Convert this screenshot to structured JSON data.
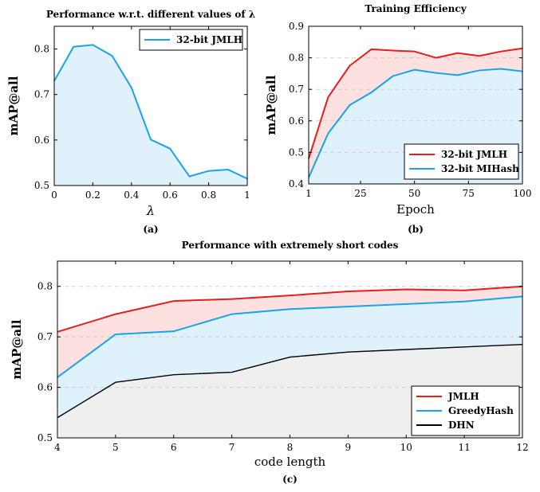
{
  "chart_data": [
    {
      "id": "a",
      "type": "area",
      "title": "Performance w.r.t. different values of λ",
      "xlabel": "λ",
      "ylabel": "mAP@all",
      "caption": "(a)",
      "xlim": [
        0,
        1
      ],
      "ylim": [
        0.5,
        0.85
      ],
      "xticks": [
        "0",
        "0.2",
        "0.4",
        "0.6",
        "0.8",
        "1"
      ],
      "yticks": [
        "0.5",
        "0.6",
        "0.7",
        "0.8"
      ],
      "grid": false,
      "legend_position": "top-right",
      "x": [
        0,
        0.1,
        0.2,
        0.3,
        0.4,
        0.5,
        0.6,
        0.7,
        0.8,
        0.9,
        1.0
      ],
      "series": [
        {
          "name": "32-bit JMLH",
          "color": "#1aa3e8",
          "fill": "#dff1fb",
          "values": [
            0.73,
            0.805,
            0.809,
            0.785,
            0.715,
            0.601,
            0.581,
            0.52,
            0.532,
            0.535,
            0.515
          ]
        }
      ]
    },
    {
      "id": "b",
      "type": "area",
      "title": "Training Efficiency",
      "xlabel": "Epoch",
      "ylabel": "mAP@all",
      "caption": "(b)",
      "xlim": [
        1,
        100
      ],
      "ylim": [
        0.4,
        0.9
      ],
      "xticks": [
        "1",
        "25",
        "50",
        "75",
        "100"
      ],
      "yticks": [
        "0.4",
        "0.5",
        "0.6",
        "0.7",
        "0.8",
        "0.9"
      ],
      "grid": true,
      "legend_position": "bottom-right",
      "x": [
        1,
        10,
        20,
        30,
        40,
        50,
        60,
        70,
        80,
        90,
        100
      ],
      "series": [
        {
          "name": "32-bit JMLH",
          "color": "#e61e1e",
          "fill": "#fde0e0",
          "values": [
            0.48,
            0.675,
            0.775,
            0.827,
            0.823,
            0.82,
            0.8,
            0.815,
            0.806,
            0.82,
            0.83
          ]
        },
        {
          "name": "32-bit MIHash",
          "color": "#1aa3e8",
          "fill": "#dff1fb",
          "values": [
            0.42,
            0.56,
            0.65,
            0.69,
            0.742,
            0.762,
            0.752,
            0.745,
            0.76,
            0.765,
            0.757
          ]
        }
      ]
    },
    {
      "id": "c",
      "type": "area",
      "title": "Performance with extremely short codes",
      "xlabel": "code length",
      "ylabel": "mAP@all",
      "caption": "(c)",
      "xlim": [
        4,
        12
      ],
      "ylim": [
        0.5,
        0.85
      ],
      "xticks": [
        "4",
        "5",
        "6",
        "7",
        "8",
        "9",
        "10",
        "11",
        "12"
      ],
      "yticks": [
        "0.5",
        "0.6",
        "0.7",
        "0.8"
      ],
      "grid": true,
      "legend_position": "bottom-right",
      "x": [
        4,
        5,
        6,
        7,
        8,
        9,
        10,
        11,
        12
      ],
      "series": [
        {
          "name": "JMLH",
          "color": "#e61e1e",
          "fill": "#fde0e0",
          "values": [
            0.71,
            0.745,
            0.771,
            0.775,
            0.782,
            0.79,
            0.794,
            0.792,
            0.8
          ]
        },
        {
          "name": "GreedyHash",
          "color": "#1aa3e8",
          "fill": "#dff1fb",
          "values": [
            0.62,
            0.705,
            0.711,
            0.745,
            0.755,
            0.76,
            0.765,
            0.77,
            0.78
          ]
        },
        {
          "name": "DHN",
          "color": "#000000",
          "fill": "#efefef",
          "values": [
            0.54,
            0.61,
            0.625,
            0.63,
            0.66,
            0.67,
            0.675,
            0.68,
            0.685
          ]
        }
      ]
    }
  ]
}
